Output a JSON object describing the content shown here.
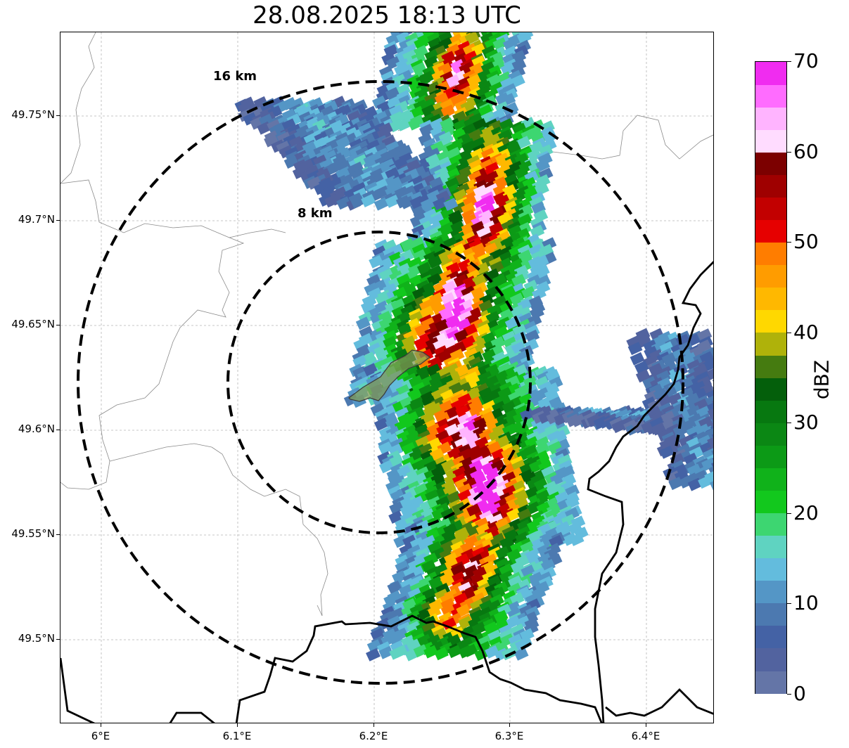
{
  "title": "28.08.2025 18:13 UTC",
  "map": {
    "y_ticks": [
      "49.75°N",
      "49.7°N",
      "49.65°N",
      "49.6°N",
      "49.55°N",
      "49.5°N"
    ],
    "x_ticks": [
      "6°E",
      "6.1°E",
      "6.2°E",
      "6.3°E",
      "6.4°E"
    ],
    "rings": [
      {
        "label": "16 km"
      },
      {
        "label": "8 km"
      }
    ]
  },
  "colorbar": {
    "unit": "dBZ",
    "tick_labels": [
      "0",
      "10",
      "20",
      "30",
      "40",
      "50",
      "60",
      "70"
    ],
    "colors": [
      "#6475a7",
      "#52639f",
      "#4462a5",
      "#4c79b0",
      "#5496c6",
      "#63bcdd",
      "#5fd3c1",
      "#3dd671",
      "#12c81d",
      "#10b21a",
      "#0c9a16",
      "#0b8714",
      "#077810",
      "#045f0b",
      "#457b10",
      "#afb20a",
      "#ffd800",
      "#ffb800",
      "#ff9c00",
      "#ff7d00",
      "#e60000",
      "#c20000",
      "#9f0000",
      "#7c0000",
      "#ffdcff",
      "#ffb4ff",
      "#ff6cff",
      "#f02cf0"
    ]
  }
}
